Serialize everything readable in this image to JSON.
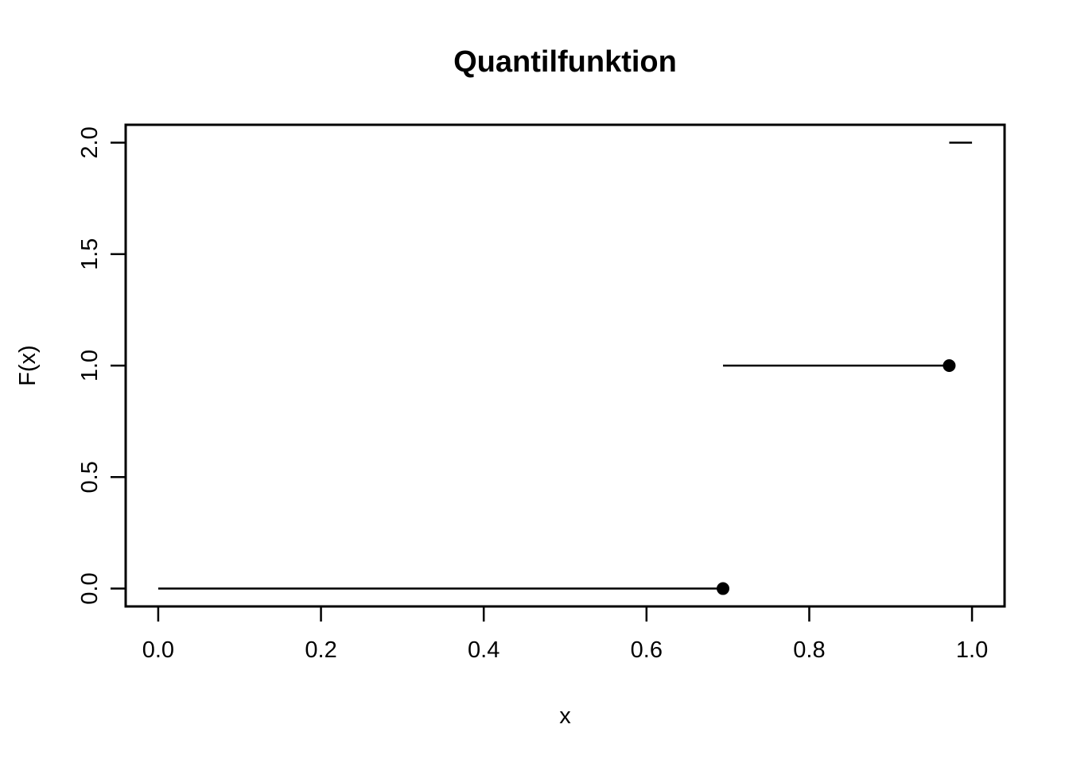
{
  "chart_data": {
    "type": "line",
    "subtype": "step-function",
    "title": "Quantilfunktion",
    "xlabel": "x",
    "ylabel": "F(x)",
    "xlim": [
      -0.04,
      1.04
    ],
    "ylim": [
      -0.08,
      2.08
    ],
    "x_ticks": [
      0.0,
      0.2,
      0.4,
      0.6,
      0.8,
      1.0
    ],
    "x_tick_labels": [
      "0.0",
      "0.2",
      "0.4",
      "0.6",
      "0.8",
      "1.0"
    ],
    "y_ticks": [
      0.0,
      0.5,
      1.0,
      1.5,
      2.0
    ],
    "y_tick_labels": [
      "0.0",
      "0.5",
      "1.0",
      "1.5",
      "2.0"
    ],
    "grid": false,
    "legend": null,
    "colors": {
      "background": "#ffffff",
      "axis": "#000000",
      "line": "#000000",
      "point": "#000000",
      "text": "#000000"
    },
    "segments": [
      {
        "y": 0,
        "x_start": 0.0,
        "x_end": 0.694,
        "closed_point_at_end": true
      },
      {
        "y": 1,
        "x_start": 0.694,
        "x_end": 0.972,
        "closed_point_at_end": true
      },
      {
        "y": 2,
        "x_start": 0.972,
        "x_end": 1.0,
        "closed_point_at_end": false
      }
    ],
    "jump_points": [
      {
        "x": 0.694,
        "y": 0
      },
      {
        "x": 0.972,
        "y": 1
      }
    ]
  }
}
